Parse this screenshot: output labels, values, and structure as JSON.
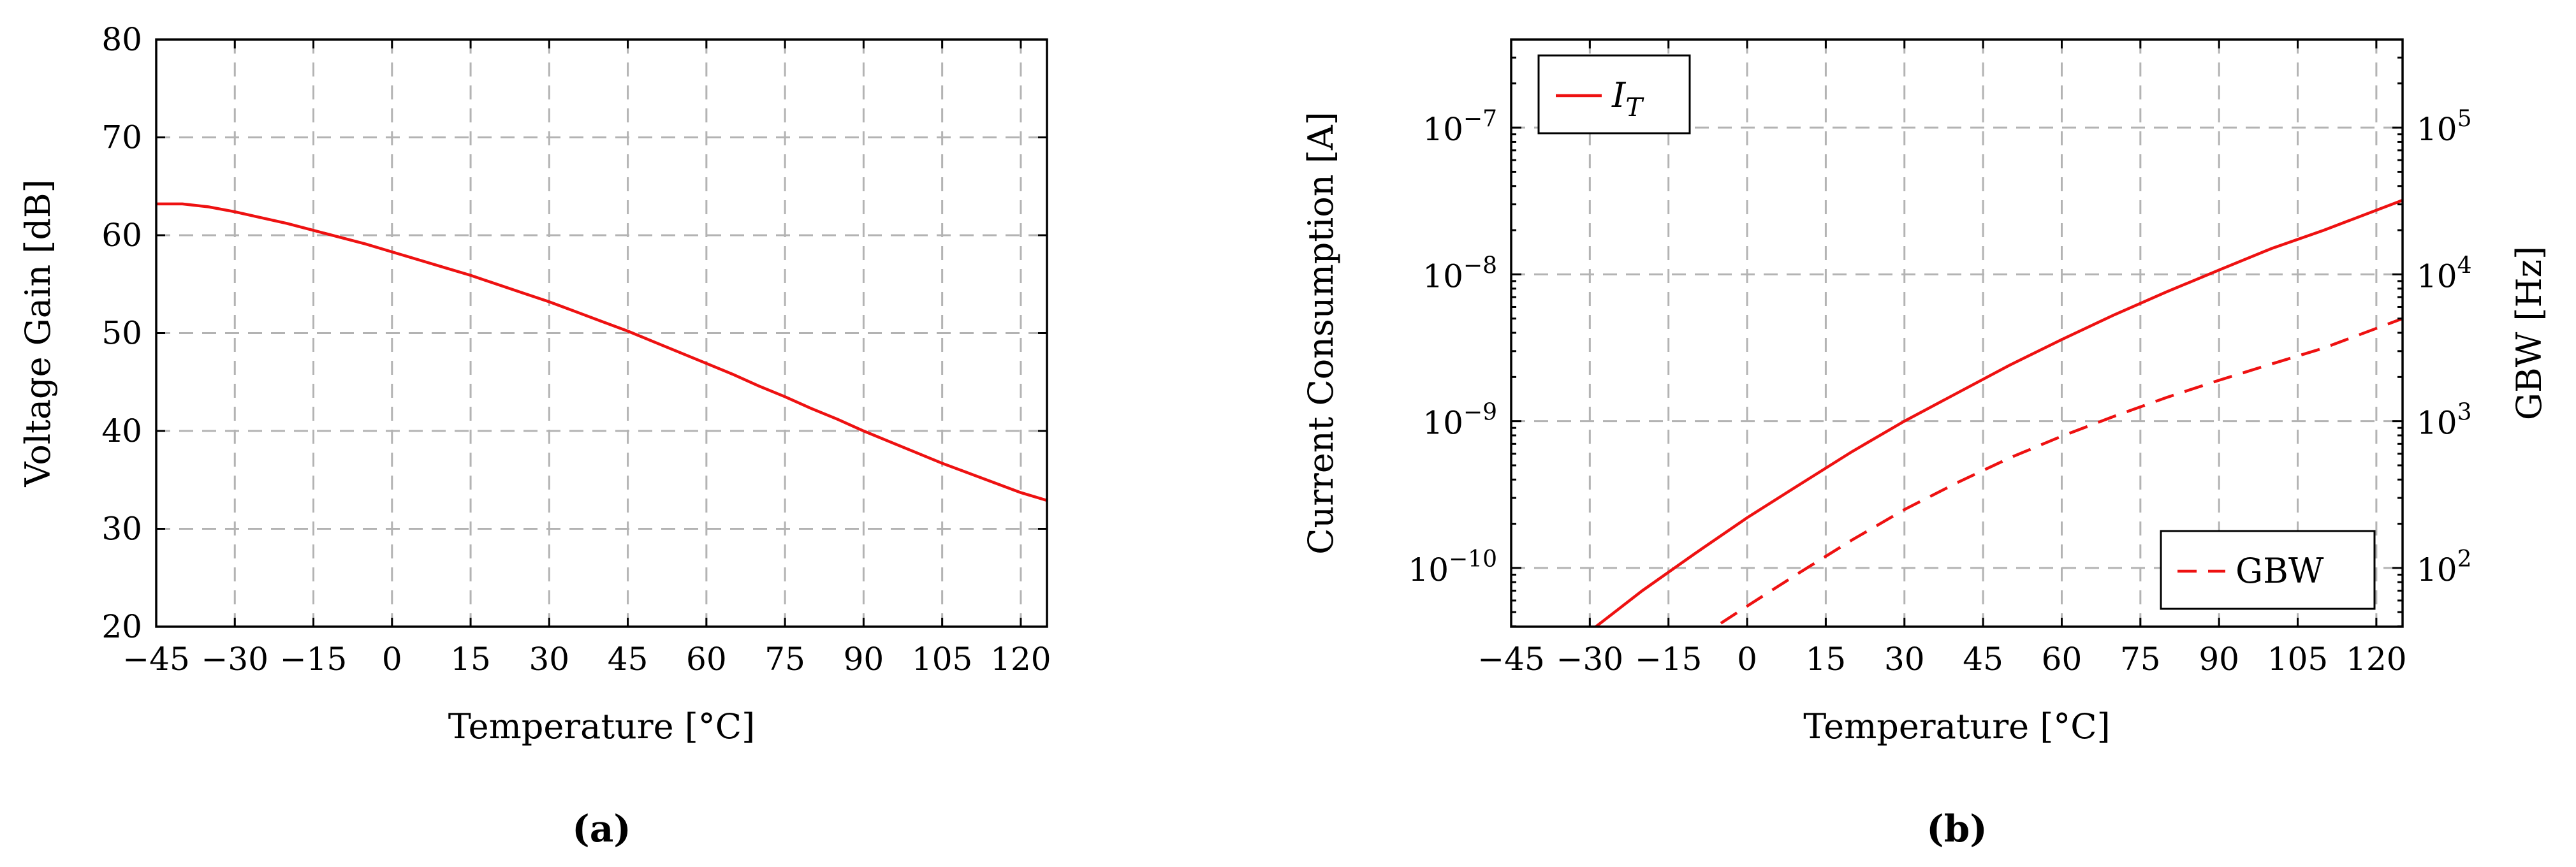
{
  "chart_data": [
    {
      "type": "line",
      "panel_label": "(a)",
      "xlabel": "Temperature [°C]",
      "ylabel": "Voltage Gain [dB]",
      "xlim": [
        -45,
        125
      ],
      "ylim": [
        20,
        80
      ],
      "xticks": [
        -45,
        -30,
        -15,
        0,
        15,
        30,
        45,
        60,
        75,
        90,
        105,
        120
      ],
      "xtick_labels": [
        "−45",
        "−30",
        "−15",
        "0",
        "15",
        "30",
        "45",
        "60",
        "75",
        "90",
        "105",
        "120"
      ],
      "yticks": [
        20,
        30,
        40,
        50,
        60,
        70,
        80
      ],
      "ytick_labels": [
        "20",
        "30",
        "40",
        "50",
        "60",
        "70",
        "80"
      ],
      "grid": true,
      "series": [
        {
          "color": "#ee1111",
          "style": "solid",
          "x": [
            -45,
            -40,
            -35,
            -30,
            -25,
            -20,
            -15,
            -10,
            -5,
            0,
            5,
            10,
            15,
            20,
            25,
            30,
            35,
            40,
            45,
            50,
            55,
            60,
            65,
            70,
            75,
            80,
            85,
            90,
            95,
            100,
            105,
            110,
            115,
            120,
            125
          ],
          "y": [
            63.2,
            63.2,
            62.9,
            62.4,
            61.8,
            61.2,
            60.5,
            59.8,
            59.1,
            58.3,
            57.5,
            56.7,
            55.9,
            55.0,
            54.1,
            53.2,
            52.2,
            51.2,
            50.2,
            49.1,
            48.0,
            46.9,
            45.8,
            44.6,
            43.5,
            42.3,
            41.2,
            40.0,
            38.9,
            37.8,
            36.7,
            35.7,
            34.7,
            33.7,
            32.9
          ]
        }
      ]
    },
    {
      "type": "line",
      "panel_label": "(b)",
      "xlabel": "Temperature [°C]",
      "ylabel": "Current Consumption [A]",
      "ylabel_right": "GBW [Hz]",
      "xlim": [
        -45,
        125
      ],
      "ylim_log10": [
        -10.4,
        -6.4
      ],
      "ylim_right_log10": [
        1.6,
        5.6
      ],
      "y_scale": "log",
      "xticks": [
        -45,
        -30,
        -15,
        0,
        15,
        30,
        45,
        60,
        75,
        90,
        105,
        120
      ],
      "xtick_labels": [
        "−45",
        "−30",
        "−15",
        "0",
        "15",
        "30",
        "45",
        "60",
        "75",
        "90",
        "105",
        "120"
      ],
      "yticks_log10": [
        -10,
        -9,
        -8,
        -7
      ],
      "ytick_base": [
        "10",
        "10",
        "10",
        "10"
      ],
      "ytick_exp": [
        "−10",
        "−9",
        "−8",
        "−7"
      ],
      "yticks_right_log10": [
        2,
        3,
        4,
        5
      ],
      "ytick_right_base": [
        "10",
        "10",
        "10",
        "10"
      ],
      "ytick_right_exp": [
        "2",
        "3",
        "4",
        "5"
      ],
      "grid": true,
      "legend": [
        {
          "label_main": "I",
          "label_sub": "T",
          "position": "top-left",
          "style": "solid"
        },
        {
          "label": "GBW",
          "position": "bottom-right",
          "style": "dashed"
        }
      ],
      "series": [
        {
          "axis": "left",
          "color": "#ee1111",
          "style": "solid",
          "x": [
            -30,
            -20,
            -10,
            0,
            10,
            20,
            30,
            40,
            50,
            60,
            70,
            80,
            90,
            100,
            110,
            125
          ],
          "y": [
            3.7e-11,
            7e-11,
            1.25e-10,
            2.2e-10,
            3.7e-10,
            6.2e-10,
            1e-09,
            1.55e-09,
            2.4e-09,
            3.6e-09,
            5.3e-09,
            7.6e-09,
            1.07e-08,
            1.5e-08,
            2e-08,
            3.2e-08
          ]
        },
        {
          "axis": "right",
          "color": "#ee1111",
          "style": "dashed",
          "x": [
            -5,
            0,
            10,
            20,
            30,
            40,
            50,
            60,
            70,
            80,
            90,
            100,
            110,
            125
          ],
          "y": [
            42,
            55,
            93,
            155,
            250,
            380,
            560,
            790,
            1080,
            1450,
            1900,
            2450,
            3150,
            5000
          ]
        }
      ]
    }
  ]
}
